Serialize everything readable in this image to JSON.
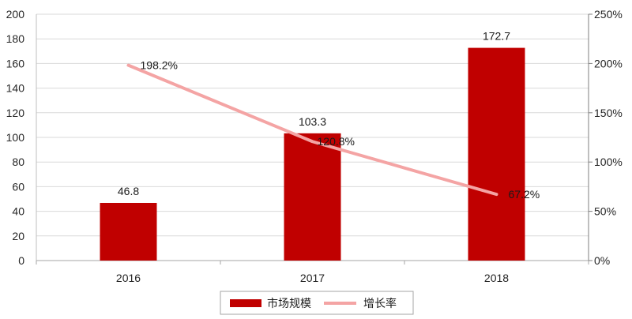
{
  "chart_data": {
    "type": "bar",
    "categories": [
      "2016",
      "2017",
      "2018"
    ],
    "series": [
      {
        "name": "市场规模",
        "type": "bar",
        "y_axis": "left",
        "values": [
          46.8,
          103.3,
          172.7
        ],
        "labels": [
          "46.8",
          "103.3",
          "172.7"
        ],
        "color": "#C00000"
      },
      {
        "name": "增长率",
        "type": "line",
        "y_axis": "right",
        "values": [
          198.2,
          120.8,
          67.2
        ],
        "labels": [
          "198.2%",
          "120.8%",
          "67.2%"
        ],
        "color": "#F4A4A4"
      }
    ],
    "y_left": {
      "min": 0,
      "max": 200,
      "ticks": [
        0,
        20,
        40,
        60,
        80,
        100,
        120,
        140,
        160,
        180,
        200
      ],
      "tick_labels": [
        "0",
        "20",
        "40",
        "60",
        "80",
        "100",
        "120",
        "140",
        "160",
        "180",
        "200"
      ]
    },
    "y_right": {
      "min": 0,
      "max": 250,
      "ticks": [
        0,
        50,
        100,
        150,
        200,
        250
      ],
      "tick_labels": [
        "0%",
        "50%",
        "100%",
        "150%",
        "200%",
        "250%"
      ]
    },
    "grid": true,
    "legend": "bottom",
    "colors": {
      "grid": "#D9D9D9",
      "axis": "#A6A6A6",
      "right_axis": "#7F7F7F"
    }
  }
}
